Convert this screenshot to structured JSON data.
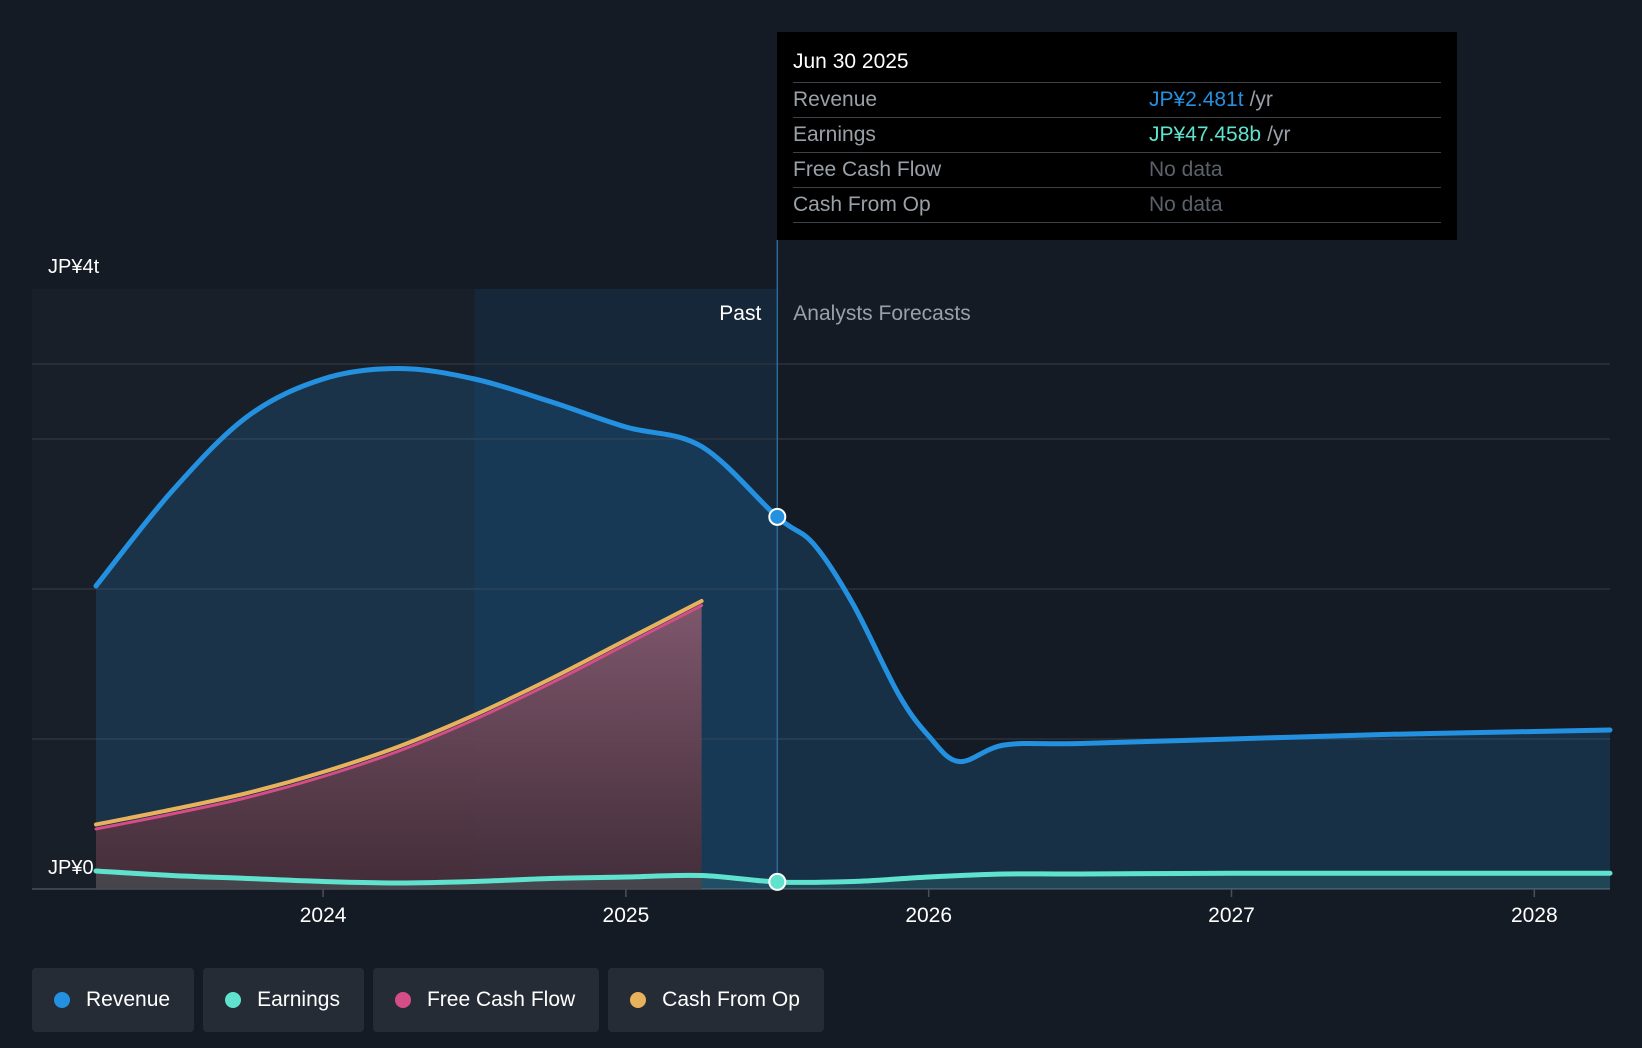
{
  "colors": {
    "background": "#151b24",
    "revenue": "#2491e0",
    "earnings": "#5fe3cf",
    "free_cash_flow": "#d44d87",
    "cash_from_op": "#e8b25d"
  },
  "tooltip": {
    "date": "Jun 30 2025",
    "rows": [
      {
        "label": "Revenue",
        "value": "JP¥2.481t",
        "unit": "/yr",
        "color": "#2491e0"
      },
      {
        "label": "Earnings",
        "value": "JP¥47.458b",
        "unit": "/yr",
        "color": "#5fe3cf"
      },
      {
        "label": "Free Cash Flow",
        "value": "No data",
        "unit": "",
        "color": "#5b616a"
      },
      {
        "label": "Cash From Op",
        "value": "No data",
        "unit": "",
        "color": "#5b616a"
      }
    ]
  },
  "legend": [
    {
      "label": "Revenue",
      "color": "#2491e0"
    },
    {
      "label": "Earnings",
      "color": "#5fe3cf"
    },
    {
      "label": "Free Cash Flow",
      "color": "#d44d87"
    },
    {
      "label": "Cash From Op",
      "color": "#e8b25d"
    }
  ],
  "chart_data": {
    "type": "area",
    "title": "",
    "xlabel": "",
    "ylabel": "",
    "x_range": [
      2023.25,
      2028.25
    ],
    "ylim": [
      0,
      4
    ],
    "y_unit": "JP¥ trillion",
    "y_tick_labels": [
      {
        "value": 4,
        "label": "JP¥4t"
      },
      {
        "value": 0,
        "label": "JP¥0"
      }
    ],
    "gridlines": [
      0,
      1,
      2,
      3,
      3.5
    ],
    "x_ticks": [
      {
        "value": 2024,
        "label": "2024"
      },
      {
        "value": 2025,
        "label": "2025"
      },
      {
        "value": 2026,
        "label": "2026"
      },
      {
        "value": 2027,
        "label": "2027"
      },
      {
        "value": 2028,
        "label": "2028"
      }
    ],
    "past_label": "Past",
    "forecast_label": "Analysts Forecasts",
    "divider_x": 2025.5,
    "highlight_start_x": 2024.5,
    "series": [
      {
        "name": "Revenue",
        "color": "#2491e0",
        "x": [
          2023.25,
          2023.5,
          2023.75,
          2024.0,
          2024.25,
          2024.5,
          2024.75,
          2025.0,
          2025.25,
          2025.5,
          2025.62,
          2025.75,
          2025.9,
          2026.0,
          2026.1,
          2026.25,
          2026.5,
          2027.0,
          2027.5,
          2028.0,
          2028.25
        ],
        "values": [
          2.02,
          2.65,
          3.15,
          3.4,
          3.47,
          3.4,
          3.25,
          3.08,
          2.95,
          2.48,
          2.3,
          1.9,
          1.3,
          1.02,
          0.85,
          0.96,
          0.97,
          1.0,
          1.03,
          1.05,
          1.06
        ]
      },
      {
        "name": "Earnings",
        "color": "#5fe3cf",
        "x": [
          2023.25,
          2023.5,
          2023.75,
          2024.0,
          2024.25,
          2024.5,
          2024.75,
          2025.0,
          2025.25,
          2025.5,
          2025.75,
          2026.0,
          2026.25,
          2026.5,
          2027.0,
          2027.5,
          2028.0,
          2028.25
        ],
        "values": [
          0.12,
          0.09,
          0.07,
          0.05,
          0.04,
          0.05,
          0.07,
          0.08,
          0.09,
          0.047,
          0.05,
          0.08,
          0.1,
          0.1,
          0.105,
          0.105,
          0.105,
          0.105
        ]
      },
      {
        "name": "Free Cash Flow",
        "color": "#d44d87",
        "x": [
          2023.25,
          2023.5,
          2023.75,
          2024.0,
          2024.25,
          2024.5,
          2024.75,
          2025.0,
          2025.25
        ],
        "values": [
          0.4,
          0.5,
          0.61,
          0.75,
          0.92,
          1.13,
          1.37,
          1.63,
          1.89
        ]
      },
      {
        "name": "Cash From Op",
        "color": "#e8b25d",
        "x": [
          2023.25,
          2023.5,
          2023.75,
          2024.0,
          2024.25,
          2024.5,
          2024.75,
          2025.0,
          2025.25
        ],
        "values": [
          0.43,
          0.53,
          0.64,
          0.78,
          0.95,
          1.16,
          1.4,
          1.66,
          1.92
        ]
      }
    ],
    "highlight_point": {
      "x": 2025.5,
      "revenue": 2.481,
      "earnings": 0.047458
    }
  }
}
